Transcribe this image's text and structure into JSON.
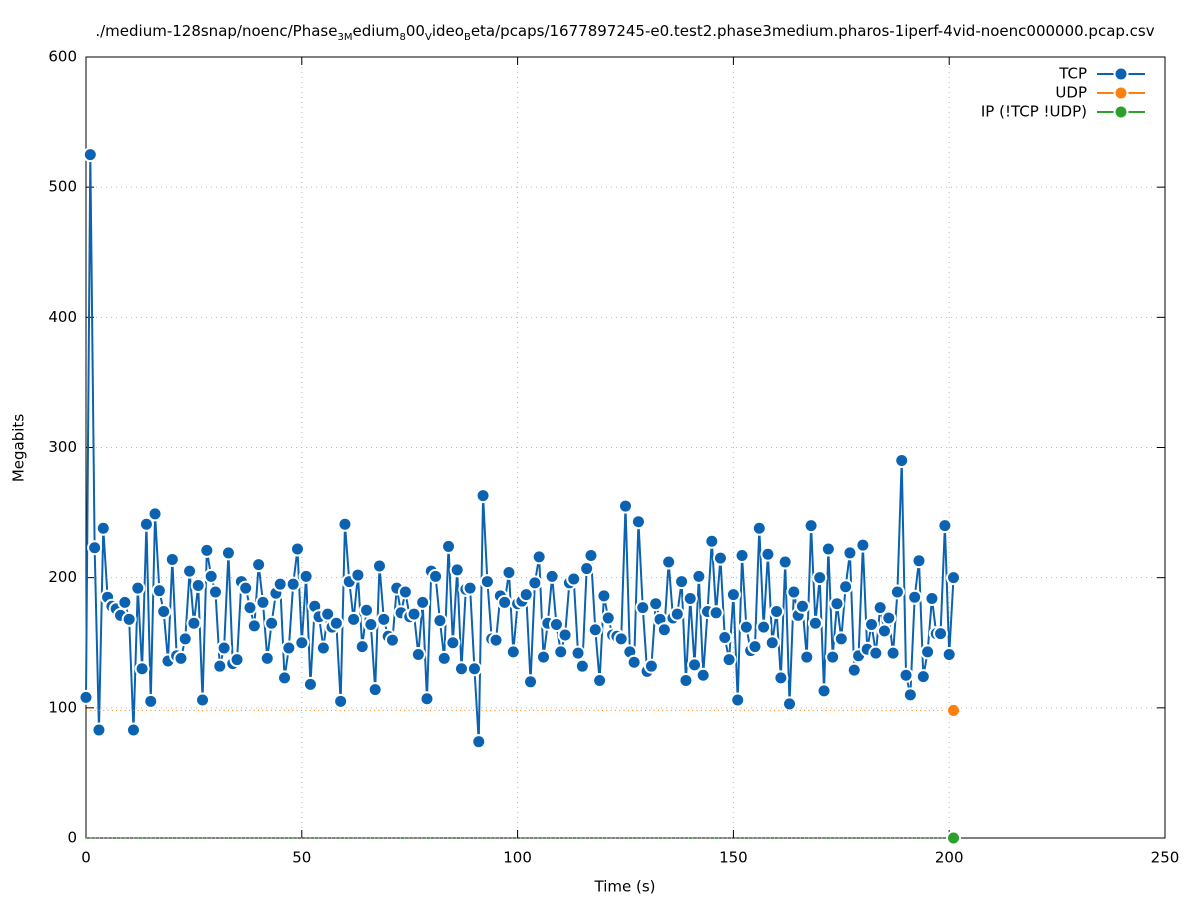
{
  "chart_data": {
    "type": "line",
    "title_parts": [
      "./medium-128snap/noenc/Phase",
      "3M",
      "edium",
      "8",
      "00",
      "V",
      "ideo",
      "B",
      "eta/pcaps/1677897245-e0.test2.phase3medium.pharos-1iperf-4vid-noenc000000.pcap.csv"
    ],
    "title_subscripts": [
      false,
      true,
      false,
      true,
      false,
      true,
      false,
      true,
      false
    ],
    "xlabel": "Time (s)",
    "ylabel": "Megabits",
    "xlim": [
      0,
      250
    ],
    "xticks": [
      0,
      50,
      100,
      150,
      200,
      250
    ],
    "ylim": [
      0,
      600
    ],
    "yticks": [
      0,
      100,
      200,
      300,
      400,
      500,
      600
    ],
    "grid": true,
    "legend": "top right",
    "x": [
      0,
      1,
      2,
      3,
      4,
      5,
      6,
      7,
      8,
      9,
      10,
      11,
      12,
      13,
      14,
      15,
      16,
      17,
      18,
      19,
      20,
      21,
      22,
      23,
      24,
      25,
      26,
      27,
      28,
      29,
      30,
      31,
      32,
      33,
      34,
      35,
      36,
      37,
      38,
      39,
      40,
      41,
      42,
      43,
      44,
      45,
      46,
      47,
      48,
      49,
      50,
      51,
      52,
      53,
      54,
      55,
      56,
      57,
      58,
      59,
      60,
      61,
      62,
      63,
      64,
      65,
      66,
      67,
      68,
      69,
      70,
      71,
      72,
      73,
      74,
      75,
      76,
      77,
      78,
      79,
      80,
      81,
      82,
      83,
      84,
      85,
      86,
      87,
      88,
      89,
      90,
      91,
      92,
      93,
      94,
      95,
      96,
      97,
      98,
      99,
      100,
      101,
      102,
      103,
      104,
      105,
      106,
      107,
      108,
      109,
      110,
      111,
      112,
      113,
      114,
      115,
      116,
      117,
      118,
      119,
      120,
      121,
      122,
      123,
      124,
      125,
      126,
      127,
      128,
      129,
      130,
      131,
      132,
      133,
      134,
      135,
      136,
      137,
      138,
      139,
      140,
      141,
      142,
      143,
      144,
      145,
      146,
      147,
      148,
      149,
      150,
      151,
      152,
      153,
      154,
      155,
      156,
      157,
      158,
      159,
      160,
      161,
      162,
      163,
      164,
      165,
      166,
      167,
      168,
      169,
      170,
      171,
      172,
      173,
      174,
      175,
      176,
      177,
      178,
      179,
      180,
      181,
      182,
      183,
      184,
      185,
      186,
      187,
      188,
      189,
      190,
      191,
      192,
      193,
      194,
      195,
      196,
      197,
      198,
      199,
      200,
      201
    ],
    "series": [
      {
        "name": "TCP",
        "color": "#0b62b0",
        "markers": "all",
        "values": [
          108,
          525,
          223,
          83,
          238,
          185,
          178,
          176,
          171,
          181,
          168,
          83,
          192,
          130,
          241,
          105,
          249,
          190,
          174,
          136,
          214,
          140,
          138,
          153,
          205,
          165,
          194,
          106,
          221,
          201,
          189,
          132,
          146,
          219,
          134,
          137,
          197,
          192,
          177,
          163,
          210,
          181,
          138,
          165,
          188,
          195,
          123,
          146,
          195,
          222,
          150,
          201,
          118,
          178,
          170,
          146,
          172,
          162,
          165,
          105,
          241,
          197,
          168,
          202,
          147,
          175,
          164,
          114,
          209,
          168,
          155,
          152,
          192,
          173,
          189,
          170,
          172,
          141,
          181,
          107,
          205,
          201,
          167,
          138,
          224,
          150,
          206,
          130,
          191,
          192,
          130,
          74,
          263,
          197,
          153,
          152,
          186,
          181,
          204,
          143,
          180,
          182,
          187,
          120,
          196,
          216,
          139,
          165,
          201,
          164,
          143,
          156,
          196,
          199,
          142,
          132,
          207,
          217,
          160,
          121,
          186,
          169,
          156,
          155,
          153,
          255,
          143,
          135,
          243,
          177,
          128,
          132,
          180,
          168,
          160,
          212,
          169,
          172,
          197,
          121,
          184,
          133,
          201,
          125,
          174,
          228,
          173,
          215,
          154,
          137,
          187,
          106,
          217,
          162,
          144,
          147,
          238,
          162,
          218,
          150,
          174,
          123,
          212,
          103,
          189,
          171,
          178,
          139,
          240,
          165,
          200,
          113,
          222,
          139,
          180,
          153,
          193,
          219,
          129,
          140,
          225,
          145,
          164,
          142,
          177,
          159,
          169,
          142,
          189,
          290,
          125,
          110,
          185,
          213,
          124,
          143,
          184,
          157,
          157,
          240,
          141,
          200
        ]
      },
      {
        "name": "UDP",
        "color": "#ff7f0e",
        "markers": "last",
        "values": [
          98,
          98,
          98,
          98,
          98,
          98,
          98,
          98,
          98,
          98,
          98,
          98,
          98,
          98,
          98,
          98,
          98,
          98,
          98,
          98,
          98,
          98,
          98,
          98,
          98,
          98,
          98,
          98,
          98,
          98,
          98,
          98,
          98,
          98,
          98,
          98,
          98,
          98,
          98,
          98,
          98,
          98,
          98,
          98,
          98,
          98,
          98,
          98,
          98,
          98,
          98,
          98,
          98,
          98,
          98,
          98,
          98,
          98,
          98,
          98,
          98,
          98,
          98,
          98,
          98,
          98,
          98,
          98,
          98,
          98,
          98,
          98,
          98,
          98,
          98,
          98,
          98,
          98,
          98,
          98,
          98,
          98,
          98,
          98,
          98,
          98,
          98,
          98,
          98,
          98,
          98,
          98,
          98,
          98,
          98,
          98,
          98,
          98,
          98,
          98,
          98,
          98,
          98,
          98,
          98,
          98,
          98,
          98,
          98,
          98,
          98,
          98,
          98,
          98,
          98,
          98,
          98,
          98,
          98,
          98,
          98,
          98,
          98,
          98,
          98,
          98,
          98,
          98,
          98,
          98,
          98,
          98,
          98,
          98,
          98,
          98,
          98,
          98,
          98,
          98,
          98,
          98,
          98,
          98,
          98,
          98,
          98,
          98,
          98,
          98,
          98,
          98,
          98,
          98,
          98,
          98,
          98,
          98,
          98,
          98,
          98,
          98,
          98,
          98,
          98,
          98,
          98,
          98,
          98,
          98,
          98,
          98,
          98,
          98,
          98,
          98,
          98,
          98,
          98,
          98,
          98,
          98,
          98,
          98,
          98,
          98,
          98,
          98,
          98,
          98,
          98,
          98,
          98,
          98,
          98,
          98,
          98,
          98,
          98,
          98,
          98,
          98
        ]
      },
      {
        "name": "IP (!TCP  !UDP)",
        "color": "#2ca02c",
        "markers": "last",
        "values": [
          0,
          0,
          0,
          0,
          0,
          0,
          0,
          0,
          0,
          0,
          0,
          0,
          0,
          0,
          0,
          0,
          0,
          0,
          0,
          0,
          0,
          0,
          0,
          0,
          0,
          0,
          0,
          0,
          0,
          0,
          0,
          0,
          0,
          0,
          0,
          0,
          0,
          0,
          0,
          0,
          0,
          0,
          0,
          0,
          0,
          0,
          0,
          0,
          0,
          0,
          0,
          0,
          0,
          0,
          0,
          0,
          0,
          0,
          0,
          0,
          0,
          0,
          0,
          0,
          0,
          0,
          0,
          0,
          0,
          0,
          0,
          0,
          0,
          0,
          0,
          0,
          0,
          0,
          0,
          0,
          0,
          0,
          0,
          0,
          0,
          0,
          0,
          0,
          0,
          0,
          0,
          0,
          0,
          0,
          0,
          0,
          0,
          0,
          0,
          0,
          0,
          0,
          0,
          0,
          0,
          0,
          0,
          0,
          0,
          0,
          0,
          0,
          0,
          0,
          0,
          0,
          0,
          0,
          0,
          0,
          0,
          0,
          0,
          0,
          0,
          0,
          0,
          0,
          0,
          0,
          0,
          0,
          0,
          0,
          0,
          0,
          0,
          0,
          0,
          0,
          0,
          0,
          0,
          0,
          0,
          0,
          0,
          0,
          0,
          0,
          0,
          0,
          0,
          0,
          0,
          0,
          0,
          0,
          0,
          0,
          0,
          0,
          0,
          0,
          0,
          0,
          0,
          0,
          0,
          0,
          0,
          0,
          0,
          0,
          0,
          0,
          0,
          0,
          0,
          0,
          0,
          0,
          0,
          0,
          0,
          0,
          0,
          0,
          0,
          0,
          0,
          0,
          0,
          0,
          0,
          0,
          0,
          0,
          0,
          0,
          0,
          0
        ]
      }
    ]
  }
}
